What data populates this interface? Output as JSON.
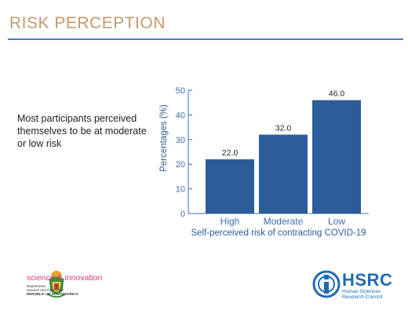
{
  "slide": {
    "title": "RISK PERCEPTION",
    "note": "Most participants perceived themselves to be at moderate or low risk"
  },
  "chart_data": {
    "type": "bar",
    "categories": [
      "High",
      "Moderate",
      "Low"
    ],
    "values": [
      22.0,
      32.0,
      46.0
    ],
    "data_labels": [
      "22.0",
      "32.0",
      "46.0"
    ],
    "title": "",
    "xlabel": "Self-perceived risk of contracting COVID-19",
    "ylabel": "Percentages (%)",
    "ylim": [
      0,
      50
    ],
    "yticks": [
      0,
      10,
      20,
      30,
      40,
      50
    ],
    "grid": false,
    "legend": "none",
    "bar_color": "#2c5d9a",
    "axis_color": "#3b6fb0"
  },
  "footer": {
    "left_brand": "science & innovation",
    "left_dept_line1": "Department:",
    "left_dept_line2": "Science and Innovation",
    "left_dept_line3": "REPUBLIC OF SOUTH AFRICA",
    "left_logo_icon": "coat-of-arms-icon",
    "right_brand": "HSRC",
    "right_sub_line1": "Human Sciences",
    "right_sub_line2": "Research Council",
    "right_logo_icon": "hsrc-globe-icon"
  }
}
